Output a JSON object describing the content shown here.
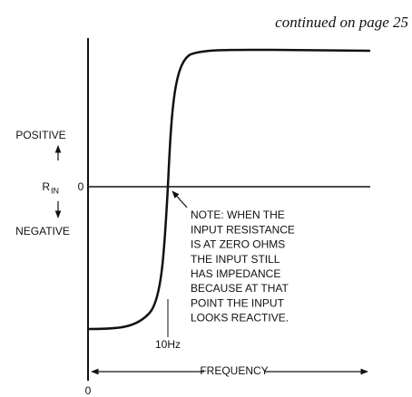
{
  "header": {
    "continued": "continued on page 25"
  },
  "axis": {
    "positive": "POSITIVE",
    "r": "R",
    "r_sub": "IN",
    "zero_y": "0",
    "negative": "NEGATIVE",
    "frequency": "FREQUENCY",
    "zero_x": "0",
    "marker": "10Hz"
  },
  "note": {
    "lines": [
      "NOTE: WHEN THE",
      "INPUT RESISTANCE",
      "IS AT ZERO OHMS",
      "THE INPUT STILL",
      "HAS IMPEDANCE",
      "BECAUSE AT THAT",
      "POINT THE INPUT",
      "LOOKS REACTIVE."
    ]
  }
}
